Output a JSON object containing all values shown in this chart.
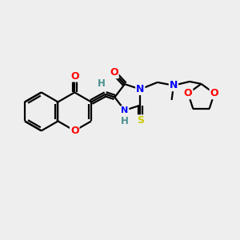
{
  "background_color": "#eeeeee",
  "bond_color": "#000000",
  "atom_colors": {
    "O": "#ff0000",
    "N": "#0000ff",
    "S": "#cccc00",
    "H": "#4a9090",
    "C": "#000000"
  },
  "bond_width": 1.6,
  "figsize": [
    3.0,
    3.0
  ],
  "dpi": 100
}
